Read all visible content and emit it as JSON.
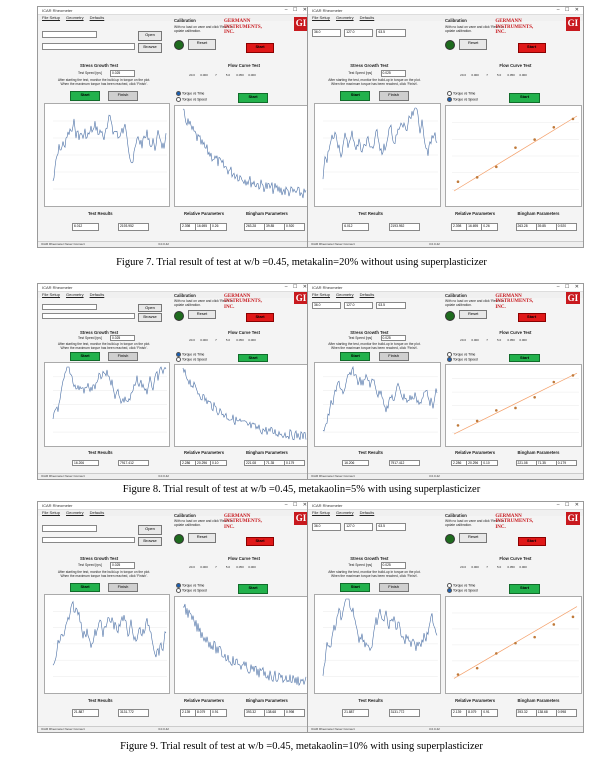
{
  "figures": [
    {
      "caption": "Figure 7. Trial result of test at w/b =0.45, metakalin=20% without using superplasticizer",
      "shots": [
        {
          "variant": "main",
          "title": "ICAR Rheometer",
          "menu": [
            "File Setup",
            "Geometry",
            "Defaults"
          ],
          "calibration": "Calibration",
          "calib_note": "With no load on vane and click 'Reset' to update calibration.",
          "reset": "Reset",
          "company": "GERMANN INSTRUMENTS, INC.",
          "logo": "GI",
          "start_red": "Start",
          "stress_title": "Stress Growth Test",
          "test_speed_label": "Test Speed [rps]",
          "test_speed": "0.025",
          "instruction": "After starting the test, monitor the build-up in torque on the plot. When the maximum torque has been reached, click 'Finish'.",
          "start": "Start",
          "finish": "Finish",
          "flow_title": "Flow Curve Test",
          "flow_values": [
            "20.0",
            "0.000",
            "7",
            "5.0",
            "0.050",
            "0.000"
          ],
          "torque_time": "Torque vs Time",
          "torque_speed": "Torque vs Speed",
          "test_results": "Test Results",
          "peak_torque": "6.012",
          "yield_stress": "2193.952",
          "relative_params": "Relative Parameters",
          "relative_values": [
            "2.398",
            "16.695",
            "0.26"
          ],
          "bingham_params": "Bingham Parameters",
          "bingham_values": [
            "263.28",
            "39.85",
            "0.920"
          ],
          "status": "ICAR Rheometer Never Connect",
          "version": "3.0.0.42"
        },
        {
          "variant": "geom",
          "title": "ICAR Rheometer",
          "menu": [
            "File Setup",
            "Geometry",
            "Defaults"
          ],
          "geom_values": [
            "36.0",
            "127.0",
            "63.5"
          ],
          "calibration": "Calibration",
          "calib_note": "With no load on vane and click 'Reset' to update calibration.",
          "reset": "Reset",
          "company": "GERMANN INSTRUMENTS, INC.",
          "logo": "GI",
          "start_red": "Start",
          "stress_title": "Stress Growth Test",
          "test_speed_label": "Test Speed [rps]",
          "test_speed": "0.025",
          "instruction": "After starting the test, monitor the build-up in torque on the plot. When the maximum torque has been reached, click 'Finish'.",
          "start": "Start",
          "finish": "Finish",
          "flow_title": "Flow Curve Test",
          "flow_values": [
            "20.0",
            "0.000",
            "7",
            "5.0",
            "0.050",
            "0.000"
          ],
          "torque_time": "Torque vs Time",
          "torque_speed": "Torque vs Speed",
          "test_results": "Test Results",
          "peak_torque": "6.012",
          "yield_stress": "2193.952",
          "relative_params": "Relative Parameters",
          "relative_values": [
            "2.398",
            "16.695",
            "0.26"
          ],
          "bingham_params": "Bingham Parameters",
          "bingham_values": [
            "263.28",
            "39.85",
            "0.920"
          ],
          "status": "ICAR Rheometer Never Connect",
          "version": "3.0.0.42"
        }
      ]
    },
    {
      "caption": "Figure 8. Trial result of test at w/b =0.45, metakaolin=5% with using superplasticizer",
      "shots": [
        {
          "variant": "main",
          "title": "ICAR Rheometer",
          "menu": [
            "File Setup",
            "Geometry",
            "Defaults"
          ],
          "calibration": "Calibration",
          "calib_note": "With no load on vane and click 'Reset' to update calibration.",
          "reset": "Reset",
          "company": "GERMANN INSTRUMENTS, INC.",
          "logo": "GI",
          "start_red": "Start",
          "stress_title": "Stress Growth Test",
          "test_speed_label": "Test Speed [rps]",
          "test_speed": "0.025",
          "instruction": "After starting the test, monitor the build-up in torque on the plot. When the maximum torque has been reached, click 'Finish'.",
          "start": "Start",
          "finish": "Finish",
          "flow_title": "Flow Curve Test",
          "flow_values": [
            "20.0",
            "0.000",
            "7",
            "5.0",
            "0.050",
            "0.000"
          ],
          "torque_time": "Torque vs Time",
          "torque_speed": "Torque vs Speed",
          "test_results": "Test Results",
          "peak_torque": "16.206",
          "yield_stress": "7917.412",
          "relative_params": "Relative Parameters",
          "relative_values": [
            "2.286",
            "20.296",
            "0.10"
          ],
          "bingham_params": "Bingham Parameters",
          "bingham_values": [
            "221.08",
            "71.35",
            "0.179"
          ],
          "status": "ICAR Rheometer Never Connect",
          "version": "3.0.0.42"
        },
        {
          "variant": "geom",
          "title": "ICAR Rheometer",
          "menu": [
            "File Setup",
            "Geometry",
            "Defaults"
          ],
          "geom_values": [
            "36.0",
            "127.0",
            "63.5"
          ],
          "calibration": "Calibration",
          "calib_note": "With no load on vane and click 'Reset' to update calibration.",
          "reset": "Reset",
          "company": "GERMANN INSTRUMENTS, INC.",
          "logo": "GI",
          "start_red": "Start",
          "stress_title": "Stress Growth Test",
          "test_speed_label": "Test Speed [rps]",
          "test_speed": "0.025",
          "instruction": "After starting the test, monitor the build-up in torque on the plot. When the maximum torque has been reached, click 'Finish'.",
          "start": "Start",
          "finish": "Finish",
          "flow_title": "Flow Curve Test",
          "flow_values": [
            "20.0",
            "0.000",
            "7",
            "5.0",
            "0.050",
            "0.000"
          ],
          "torque_time": "Torque vs Time",
          "torque_speed": "Torque vs Speed",
          "test_results": "Test Results",
          "peak_torque": "16.206",
          "yield_stress": "7917.412",
          "relative_params": "Relative Parameters",
          "relative_values": [
            "2.286",
            "20.296",
            "0.10"
          ],
          "bingham_params": "Bingham Parameters",
          "bingham_values": [
            "221.08",
            "71.35",
            "0.179"
          ],
          "status": "ICAR Rheometer Never Connect",
          "version": "3.0.0.42"
        }
      ]
    },
    {
      "caption": "Figure 9. Trial result of test at w/b =0.45, metakaolin=10% with using superplasticizer",
      "shots": [
        {
          "variant": "main",
          "title": "ICAR Rheometer",
          "menu": [
            "File Setup",
            "Geometry",
            "Defaults"
          ],
          "calibration": "Calibration",
          "calib_note": "With no load on vane and click 'Reset' to update calibration.",
          "reset": "Reset",
          "company": "GERMANN INSTRUMENTS, INC.",
          "logo": "GI",
          "start_red": "Start",
          "stress_title": "Stress Growth Test",
          "test_speed_label": "Test Speed [rps]",
          "test_speed": "0.025",
          "instruction": "After starting the test, monitor the build-up in torque on the plot. When the maximum torque has been reached, click 'Finish'.",
          "start": "Start",
          "finish": "Finish",
          "flow_title": "Flow Curve Test",
          "flow_values": [
            "20.0",
            "0.000",
            "7",
            "5.0",
            "0.050",
            "0.000"
          ],
          "torque_time": "Torque vs Time",
          "torque_speed": "Torque vs Speed",
          "test_results": "Test Results",
          "peak_torque": "21.887",
          "yield_stress": "3131.772",
          "relative_params": "Relative Parameters",
          "relative_values": [
            "2.139",
            "8.079",
            "0.91"
          ],
          "bingham_params": "Bingham Parameters",
          "bingham_values": [
            "393.32",
            "138.68",
            "0.998"
          ],
          "status": "ICAR Rheometer Never Connect",
          "version": "3.0.0.42"
        },
        {
          "variant": "geom",
          "title": "ICAR Rheometer",
          "menu": [
            "File Setup",
            "Geometry",
            "Defaults"
          ],
          "geom_values": [
            "36.0",
            "127.0",
            "63.5"
          ],
          "calibration": "Calibration",
          "calib_note": "With no load on vane and click 'Reset' to update calibration.",
          "reset": "Reset",
          "company": "GERMANN INSTRUMENTS, INC.",
          "logo": "GI",
          "start_red": "Start",
          "stress_title": "Stress Growth Test",
          "test_speed_label": "Test Speed [rps]",
          "test_speed": "0.025",
          "instruction": "After starting the test, monitor the build-up in torque on the plot. When the maximum torque has been reached, click 'Finish'.",
          "start": "Start",
          "finish": "Finish",
          "flow_title": "Flow Curve Test",
          "flow_values": [
            "20.0",
            "0.000",
            "7",
            "5.0",
            "0.050",
            "0.000"
          ],
          "torque_time": "Torque vs Time",
          "torque_speed": "Torque vs Speed",
          "test_results": "Test Results",
          "peak_torque": "21.887",
          "yield_stress": "3131.772",
          "relative_params": "Relative Parameters",
          "relative_values": [
            "2.139",
            "8.079",
            "0.91"
          ],
          "bingham_params": "Bingham Parameters",
          "bingham_values": [
            "393.32",
            "138.68",
            "0.998"
          ],
          "status": "ICAR Rheometer Never Connect",
          "version": "3.0.0.42"
        }
      ]
    }
  ],
  "colors": {
    "series": "#4a6fa5",
    "fit": "#f4a06a",
    "points": "#c07a3a",
    "green": "#22b14c",
    "red": "#e01818"
  }
}
